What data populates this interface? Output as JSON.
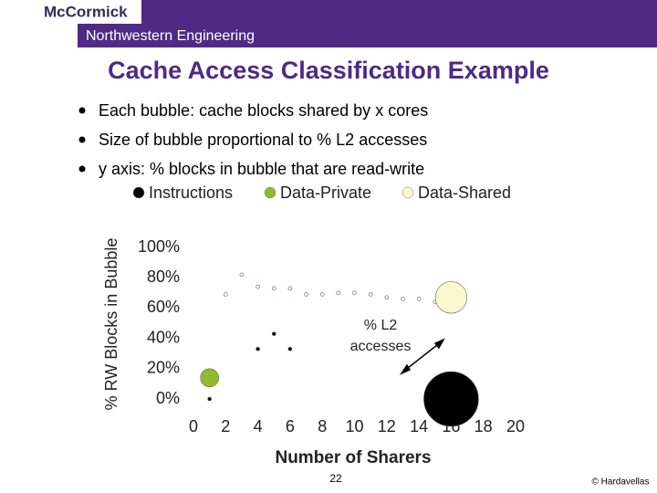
{
  "slide": {
    "logo": "McCormick",
    "band": "Northwestern Engineering",
    "title": "Cache Access Classification Example",
    "bullets": [
      "Each bubble: cache blocks shared by x cores",
      "Size of bubble proportional to % L2 accesses",
      "y axis: % blocks in bubble that are read-write"
    ],
    "page_number": "22",
    "footer": "© Hardavellas"
  },
  "chart_data": {
    "type": "bubble",
    "x_label": "Number of Sharers",
    "y_label": "% RW Blocks in Bubble",
    "annotation": [
      "% L2",
      "accesses"
    ],
    "xlim": [
      0,
      20
    ],
    "xticks": [
      0,
      2,
      4,
      6,
      8,
      10,
      12,
      14,
      16,
      18,
      20
    ],
    "ylim": [
      0,
      100
    ],
    "yticks": [
      {
        "value": 0,
        "label": "0%"
      },
      {
        "value": 20,
        "label": "20%"
      },
      {
        "value": 40,
        "label": "40%"
      },
      {
        "value": 60,
        "label": "60%"
      },
      {
        "value": 80,
        "label": "80%"
      },
      {
        "value": 100,
        "label": "100%"
      }
    ],
    "grid": false,
    "legend": "top",
    "series": [
      {
        "name": "Instructions",
        "color": "#000000",
        "x": [
          1,
          4,
          5,
          6,
          16
        ],
        "values": [
          0,
          33,
          43,
          33,
          0
        ],
        "sizes": [
          0.2,
          0.2,
          0.2,
          0.2,
          45
        ]
      },
      {
        "name": "Data-Private",
        "color": "#8fbc2a",
        "x": [
          1
        ],
        "values": [
          14
        ],
        "sizes": [
          5
        ]
      },
      {
        "name": "Data-Shared",
        "color": "#fbf8d0",
        "x": [
          2,
          3,
          4,
          5,
          6,
          7,
          8,
          9,
          10,
          11,
          12,
          13,
          14,
          15,
          16
        ],
        "values": [
          69,
          82,
          74,
          73,
          73,
          69,
          69,
          70,
          70,
          69,
          67,
          66,
          66,
          64,
          67
        ],
        "sizes": [
          0.2,
          0.2,
          0.2,
          0.2,
          0.2,
          0.2,
          0.2,
          0.2,
          0.2,
          0.2,
          0.2,
          0.2,
          0.2,
          0.2,
          15
        ]
      }
    ]
  }
}
